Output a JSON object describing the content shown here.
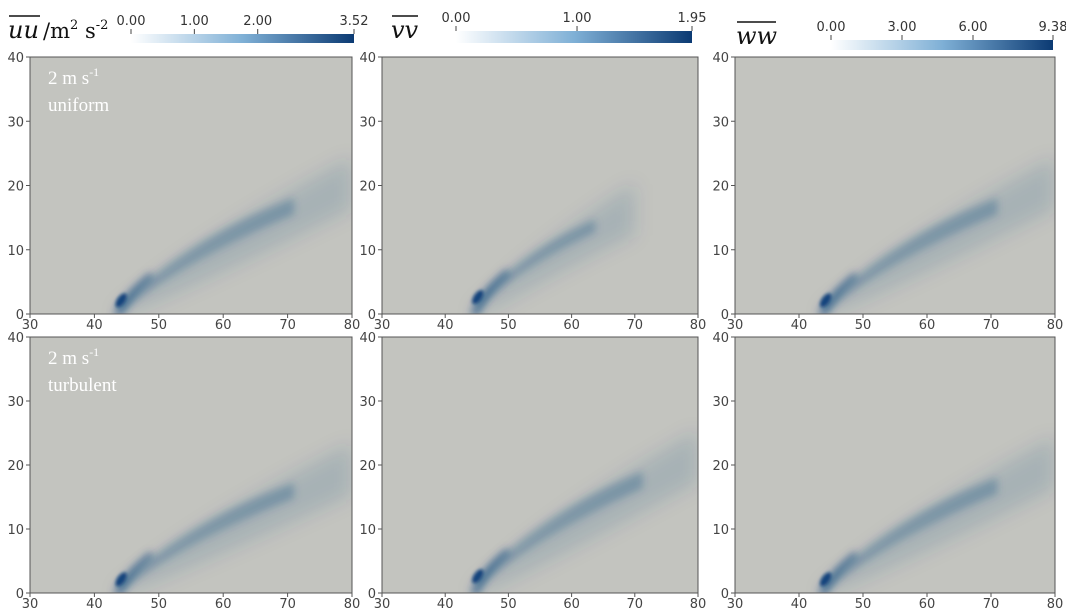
{
  "colors": {
    "background_field": "#c3c4bf",
    "plume": "#0b3f7a",
    "colorbar_low": "#ffffff",
    "colorbar_high": "#0b3a73",
    "axis": "#555555"
  },
  "colorbars": [
    {
      "quantity_symbol": "uu",
      "units_base": "/m",
      "units_sup1": "2",
      "units_mid": " s",
      "units_sup2": "-2",
      "min": 0.0,
      "max": 3.52,
      "ticks": [
        "0.00",
        "1.00",
        "2.00",
        "3.52"
      ],
      "tick_values": [
        0.0,
        1.0,
        2.0,
        3.52
      ]
    },
    {
      "quantity_symbol": "vv",
      "min": 0.0,
      "max": 1.95,
      "ticks": [
        "0.00",
        "1.00",
        "1.95"
      ],
      "tick_values": [
        0.0,
        1.0,
        1.95
      ]
    },
    {
      "quantity_symbol": "ww",
      "min": 0.0,
      "max": 9.38,
      "ticks": [
        "0.00",
        "3.00",
        "6.00",
        "9.38"
      ],
      "tick_values": [
        0.0,
        3.0,
        6.0,
        9.38
      ]
    }
  ],
  "row_labels": [
    {
      "line1": "2 m s",
      "line1_sup": "-1",
      "line2": "uniform"
    },
    {
      "line1": "2 m s",
      "line1_sup": "-1",
      "line2": "turbulent"
    }
  ],
  "chart_data": {
    "type": "heatmap",
    "title": "",
    "xlim": [
      30,
      80
    ],
    "ylim": [
      0,
      40
    ],
    "x_ticks": [
      30,
      40,
      50,
      60,
      70,
      80
    ],
    "y_ticks": [
      0,
      10,
      20,
      30,
      40
    ],
    "x_tick_labels": [
      "30",
      "40",
      "50",
      "60",
      "70",
      "80"
    ],
    "y_tick_labels": [
      "0",
      "10",
      "20",
      "30",
      "40"
    ],
    "panels": [
      {
        "row": "uniform",
        "quantity": "uu",
        "peak_x": 44,
        "peak_y": 1.5,
        "peak_value": 3.52,
        "spread_end": [
          80,
          21
        ]
      },
      {
        "row": "uniform",
        "quantity": "vv",
        "peak_x": 45,
        "peak_y": 2,
        "peak_value": 1.95,
        "spread_end": [
          70,
          17
        ]
      },
      {
        "row": "uniform",
        "quantity": "ww",
        "peak_x": 44,
        "peak_y": 1.5,
        "peak_value": 9.38,
        "spread_end": [
          80,
          21
        ]
      },
      {
        "row": "turbulent",
        "quantity": "uu",
        "peak_x": 44,
        "peak_y": 1.5,
        "peak_value": 3.52,
        "spread_end": [
          80,
          20
        ]
      },
      {
        "row": "turbulent",
        "quantity": "vv",
        "peak_x": 45,
        "peak_y": 2,
        "peak_value": 1.95,
        "spread_end": [
          80,
          22
        ]
      },
      {
        "row": "turbulent",
        "quantity": "ww",
        "peak_x": 44,
        "peak_y": 1.5,
        "peak_value": 9.38,
        "spread_end": [
          80,
          21
        ]
      }
    ]
  }
}
